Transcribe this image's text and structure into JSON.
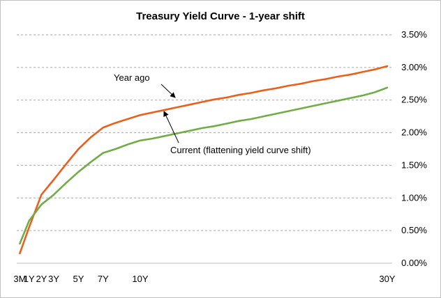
{
  "chart_data": {
    "type": "line",
    "title": "Treasury Yield Curve  - 1-year shift",
    "xlabel": "",
    "ylabel": "",
    "ylim": [
      0,
      3.5
    ],
    "grid": "horizontal-dashed",
    "x_tick_labels": [
      {
        "label": "3M",
        "at": 0.25
      },
      {
        "label": "1Y",
        "at": 1
      },
      {
        "label": "2Y",
        "at": 2
      },
      {
        "label": "3Y",
        "at": 3
      },
      {
        "label": "5Y",
        "at": 5
      },
      {
        "label": "7Y",
        "at": 7
      },
      {
        "label": "10Y",
        "at": 10
      },
      {
        "label": "30Y",
        "at": 30
      }
    ],
    "y_tick_labels": [
      "0.00%",
      "0.50%",
      "1.00%",
      "1.50%",
      "2.00%",
      "2.50%",
      "3.00%",
      "3.50%"
    ],
    "y_ticks": [
      0,
      0.5,
      1.0,
      1.5,
      2.0,
      2.5,
      3.0,
      3.5
    ],
    "series": [
      {
        "name": "Year ago",
        "color": "#e8601c",
        "x": [
          0.25,
          1,
          2,
          3,
          4,
          5,
          6,
          7,
          8,
          9,
          10,
          11,
          12,
          13,
          14,
          15,
          16,
          17,
          18,
          19,
          20,
          21,
          22,
          23,
          24,
          25,
          26,
          27,
          28,
          29,
          30
        ],
        "values": [
          0.15,
          0.55,
          1.05,
          1.28,
          1.52,
          1.75,
          1.93,
          2.08,
          2.15,
          2.21,
          2.27,
          2.31,
          2.35,
          2.39,
          2.43,
          2.47,
          2.51,
          2.54,
          2.58,
          2.61,
          2.65,
          2.68,
          2.72,
          2.75,
          2.79,
          2.82,
          2.86,
          2.89,
          2.93,
          2.97,
          3.02
        ]
      },
      {
        "name": "Current",
        "color": "#70ad47",
        "x": [
          0.25,
          1,
          2,
          3,
          4,
          5,
          6,
          7,
          8,
          9,
          10,
          11,
          12,
          13,
          14,
          15,
          16,
          17,
          18,
          19,
          20,
          21,
          22,
          23,
          24,
          25,
          26,
          27,
          28,
          29,
          30
        ],
        "values": [
          0.3,
          0.65,
          0.9,
          1.05,
          1.23,
          1.4,
          1.55,
          1.69,
          1.75,
          1.82,
          1.88,
          1.91,
          1.95,
          1.99,
          2.03,
          2.07,
          2.1,
          2.14,
          2.18,
          2.21,
          2.25,
          2.29,
          2.33,
          2.37,
          2.41,
          2.45,
          2.49,
          2.53,
          2.57,
          2.62,
          2.69
        ]
      }
    ],
    "annotations": [
      {
        "text": "Year ago",
        "arrow_to_series": "Year ago"
      },
      {
        "text": "Current (flattening yield curve shift)",
        "arrow_to_series": "Year ago"
      }
    ]
  }
}
